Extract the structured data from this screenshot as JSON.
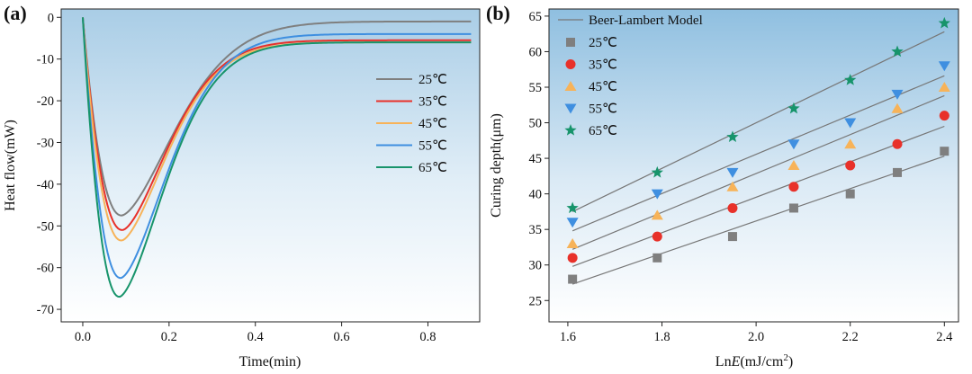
{
  "chart_data": [
    {
      "type": "line",
      "panel": "(a)",
      "xlabel": "Time(min)",
      "ylabel": "Heat flow(mW)",
      "xlim": [
        -0.05,
        0.92
      ],
      "ylim": [
        -73,
        2
      ],
      "xticks": [
        0.0,
        0.2,
        0.4,
        0.6,
        0.8
      ],
      "xtick_labels": [
        "0.0",
        "0.2",
        "0.4",
        "0.6",
        "0.8"
      ],
      "yticks": [
        0,
        -10,
        -20,
        -30,
        -40,
        -50,
        -60,
        -70
      ],
      "ytick_labels": [
        "0",
        "-10",
        "-20",
        "-30",
        "-40",
        "-50",
        "-60",
        "-70"
      ],
      "legend_position": "right",
      "series": [
        {
          "name": "25℃",
          "color": "#7f7f7f",
          "peak_time": 0.09,
          "peak_value": -47.5,
          "final_value": -1.0,
          "decay": 0.175
        },
        {
          "name": "35℃",
          "color": "#e8312a",
          "peak_time": 0.092,
          "peak_value": -51.0,
          "final_value": -5.5,
          "decay": 0.15
        },
        {
          "name": "45℃",
          "color": "#f7b359",
          "peak_time": 0.09,
          "peak_value": -53.5,
          "final_value": -6.0,
          "decay": 0.15
        },
        {
          "name": "55℃",
          "color": "#3f8fe0",
          "peak_time": 0.088,
          "peak_value": -62.5,
          "final_value": -4.0,
          "decay": 0.155
        },
        {
          "name": "65℃",
          "color": "#17946b",
          "peak_time": 0.085,
          "peak_value": -67.0,
          "final_value": -6.0,
          "decay": 0.15
        }
      ]
    },
    {
      "type": "scatter",
      "panel": "(b)",
      "xlabel": "LnE(mJ/cm²)",
      "xlabel_parts": [
        "Ln",
        "E",
        "(mJ/cm",
        "2",
        ")"
      ],
      "ylabel": "Curing depth(μm)",
      "xlim": [
        1.56,
        2.43
      ],
      "ylim": [
        22,
        66
      ],
      "xticks": [
        1.6,
        1.8,
        2.0,
        2.2,
        2.4
      ],
      "xtick_labels": [
        "1.6",
        "1.8",
        "2.0",
        "2.2",
        "2.4"
      ],
      "yticks": [
        25,
        30,
        35,
        40,
        45,
        50,
        55,
        60,
        65
      ],
      "ytick_labels": [
        "25",
        "30",
        "35",
        "40",
        "45",
        "50",
        "55",
        "60",
        "65"
      ],
      "legend_position": "top-left",
      "model_name": "Beer-Lambert Model",
      "model_color": "#777777",
      "x": [
        1.61,
        1.79,
        1.95,
        2.08,
        2.2,
        2.3,
        2.4
      ],
      "series": [
        {
          "name": "25℃",
          "marker": "square",
          "color": "#7f7f7f",
          "y": [
            28,
            31,
            34,
            38,
            40,
            43,
            46
          ],
          "fit": [
            [
              1.61,
              27.3
            ],
            [
              2.4,
              45.3
            ]
          ]
        },
        {
          "name": "35℃",
          "marker": "circle",
          "color": "#e8312a",
          "y": [
            31,
            34,
            38,
            41,
            44,
            47,
            51
          ],
          "fit": [
            [
              1.61,
              29.8
            ],
            [
              2.4,
              49.5
            ]
          ]
        },
        {
          "name": "45℃",
          "marker": "triangle-up",
          "color": "#f7b359",
          "y": [
            33,
            37,
            41,
            44,
            47,
            52,
            55
          ],
          "fit": [
            [
              1.61,
              32.2
            ],
            [
              2.4,
              53.8
            ]
          ]
        },
        {
          "name": "55℃",
          "marker": "triangle-down",
          "color": "#3f8fe0",
          "y": [
            36,
            40,
            43,
            47,
            50,
            54,
            58
          ],
          "fit": [
            [
              1.61,
              34.8
            ],
            [
              2.4,
              56.6
            ]
          ]
        },
        {
          "name": "65℃",
          "marker": "star",
          "color": "#17946b",
          "y": [
            38,
            43,
            48,
            52,
            56,
            60,
            64
          ],
          "fit": [
            [
              1.61,
              37.5
            ],
            [
              2.4,
              62.8
            ]
          ]
        }
      ]
    }
  ]
}
